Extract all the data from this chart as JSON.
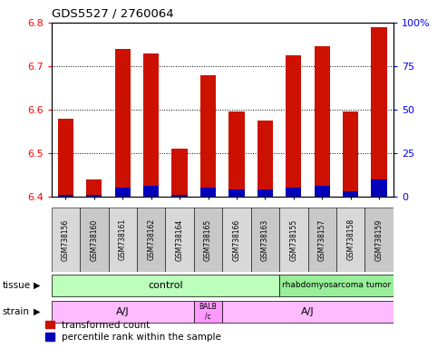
{
  "title": "GDS5527 / 2760064",
  "samples": [
    "GSM738156",
    "GSM738160",
    "GSM738161",
    "GSM738162",
    "GSM738164",
    "GSM738165",
    "GSM738166",
    "GSM738163",
    "GSM738155",
    "GSM738157",
    "GSM738158",
    "GSM738159"
  ],
  "red_values": [
    6.58,
    6.44,
    6.74,
    6.73,
    6.51,
    6.68,
    6.595,
    6.575,
    6.725,
    6.745,
    6.595,
    6.79
  ],
  "blue_pct": [
    1,
    1,
    5,
    6,
    1,
    5,
    4,
    4,
    5,
    6,
    3,
    10
  ],
  "y_min": 6.4,
  "y_max": 6.8,
  "y_ticks": [
    6.4,
    6.5,
    6.6,
    6.7,
    6.8
  ],
  "y2_ticks": [
    0,
    25,
    50,
    75,
    100
  ],
  "n_ctrl": 8,
  "n_tumor": 4,
  "n_aj1": 5,
  "n_balbc": 1,
  "n_aj2": 6,
  "bar_color_red": "#cc1100",
  "bar_color_blue": "#0000bb",
  "tissue_control_color": "#bbffbb",
  "tissue_tumor_color": "#99ee99",
  "strain_color": "#ffbbff",
  "strain_balbc_color": "#ff99ff",
  "label_tissue_control": "control",
  "label_tissue_tumor": "rhabdomyosarcoma tumor",
  "label_strain_aj": "A/J",
  "label_strain_balbc": "BALB\n/c",
  "legend_red": "transformed count",
  "legend_blue": "percentile rank within the sample",
  "bar_width": 0.55
}
